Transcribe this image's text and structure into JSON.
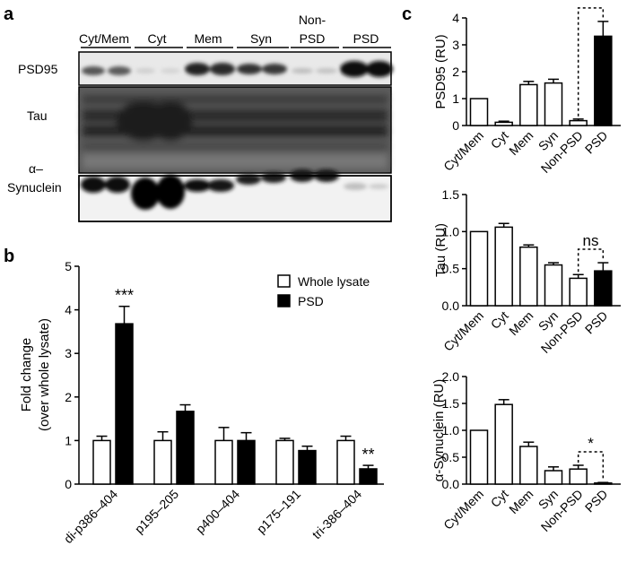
{
  "panel_a": {
    "letter": "a",
    "fractions": [
      "Cyt/Mem",
      "Cyt",
      "Mem",
      "Syn",
      "Non-PSD",
      "PSD"
    ],
    "row_labels": [
      "PSD95",
      "Tau",
      "α–",
      "Synuclein"
    ]
  },
  "panel_b": {
    "letter": "b",
    "ylabel_line1": "Fold change",
    "ylabel_line2": "(over whole lysate)",
    "legend": [
      "Whole lysate",
      "PSD"
    ]
  },
  "panel_c": {
    "letter": "c"
  },
  "chart_data": [
    {
      "id": "b",
      "type": "bar",
      "categories": [
        "di-p386–404",
        "p195–205",
        "p400–404",
        "p175–191",
        "tri-386–404"
      ],
      "series": [
        {
          "name": "Whole lysate",
          "color": "#ffffff",
          "values": [
            1.0,
            1.0,
            1.0,
            1.0,
            1.0
          ],
          "errors": [
            0.1,
            0.2,
            0.3,
            0.05,
            0.1
          ]
        },
        {
          "name": "PSD",
          "color": "#000000",
          "values": [
            3.68,
            1.67,
            1.0,
            0.77,
            0.35
          ],
          "errors": [
            0.4,
            0.15,
            0.18,
            0.1,
            0.08
          ]
        }
      ],
      "ylabel": "Fold change (over whole lysate)",
      "ylim": [
        0,
        5
      ],
      "yticks": [
        0,
        1,
        2,
        3,
        4,
        5
      ],
      "significance": [
        {
          "category": 0,
          "label": "***"
        },
        {
          "category": 4,
          "label": "**"
        }
      ],
      "legend_position": "top-right"
    },
    {
      "id": "c1",
      "type": "bar",
      "categories": [
        "Cyt/Mem",
        "Cyt",
        "Mem",
        "Syn",
        "Non-PSD",
        "PSD"
      ],
      "values": [
        1.0,
        0.12,
        1.52,
        1.58,
        0.18,
        3.32
      ],
      "errors": [
        0,
        0.04,
        0.12,
        0.14,
        0.06,
        0.55
      ],
      "fills": [
        "#ffffff",
        "#ffffff",
        "#ffffff",
        "#ffffff",
        "#ffffff",
        "#000000"
      ],
      "ylabel": "PSD95 (RU)",
      "ylim": [
        0,
        4
      ],
      "yticks": [
        0,
        1,
        2,
        3,
        4
      ],
      "comparison": {
        "between": [
          4,
          5
        ],
        "label": "**"
      }
    },
    {
      "id": "c2",
      "type": "bar",
      "categories": [
        "Cyt/Mem",
        "Cyt",
        "Mem",
        "Syn",
        "Non-PSD",
        "PSD"
      ],
      "values": [
        1.0,
        1.06,
        0.79,
        0.55,
        0.37,
        0.47
      ],
      "errors": [
        0,
        0.05,
        0.03,
        0.03,
        0.05,
        0.11
      ],
      "fills": [
        "#ffffff",
        "#ffffff",
        "#ffffff",
        "#ffffff",
        "#ffffff",
        "#000000"
      ],
      "ylabel": "Tau (RU)",
      "ylim": [
        0,
        1.5
      ],
      "yticks": [
        0,
        0.5,
        1.0,
        1.5
      ],
      "comparison": {
        "between": [
          4,
          5
        ],
        "label": "ns"
      }
    },
    {
      "id": "c3",
      "type": "bar",
      "categories": [
        "Cyt/Mem",
        "Cyt",
        "Mem",
        "Syn",
        "Non-PSD",
        "PSD"
      ],
      "values": [
        1.0,
        1.48,
        0.7,
        0.25,
        0.28,
        0.02
      ],
      "errors": [
        0,
        0.09,
        0.08,
        0.07,
        0.07,
        0.01
      ],
      "fills": [
        "#ffffff",
        "#ffffff",
        "#ffffff",
        "#ffffff",
        "#ffffff",
        "#000000"
      ],
      "ylabel": "α-Synuclein (RU)",
      "ylim": [
        0,
        2.0
      ],
      "yticks": [
        0,
        0.5,
        1.0,
        1.5,
        2.0
      ],
      "comparison": {
        "between": [
          4,
          5
        ],
        "label": "*"
      }
    }
  ]
}
